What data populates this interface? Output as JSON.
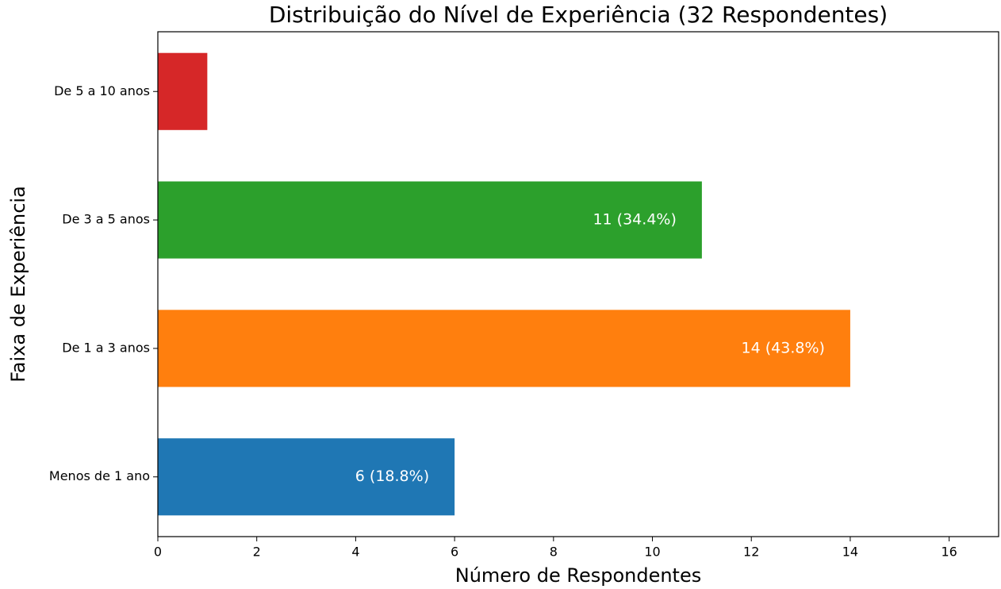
{
  "chart_data": {
    "type": "barh",
    "title": "Distribuição do Nível de Experiência (32 Respondentes)",
    "xlabel": "Número de Respondentes",
    "ylabel": "Faixa de Experiência",
    "categories": [
      "Menos de 1 ano",
      "De 1 a 3 anos",
      "De 3 a 5 anos",
      "De 5 a 10 anos"
    ],
    "values": [
      6,
      14,
      11,
      1
    ],
    "value_labels": [
      "6 (18.8%)",
      "14 (43.8%)",
      "11 (34.4%)",
      null
    ],
    "colors": [
      "#1f77b4",
      "#ff7f0e",
      "#2ca02c",
      "#d62728"
    ],
    "xlim": [
      0,
      17
    ],
    "xticks": [
      0,
      2,
      4,
      6,
      8,
      10,
      12,
      14,
      16
    ]
  }
}
